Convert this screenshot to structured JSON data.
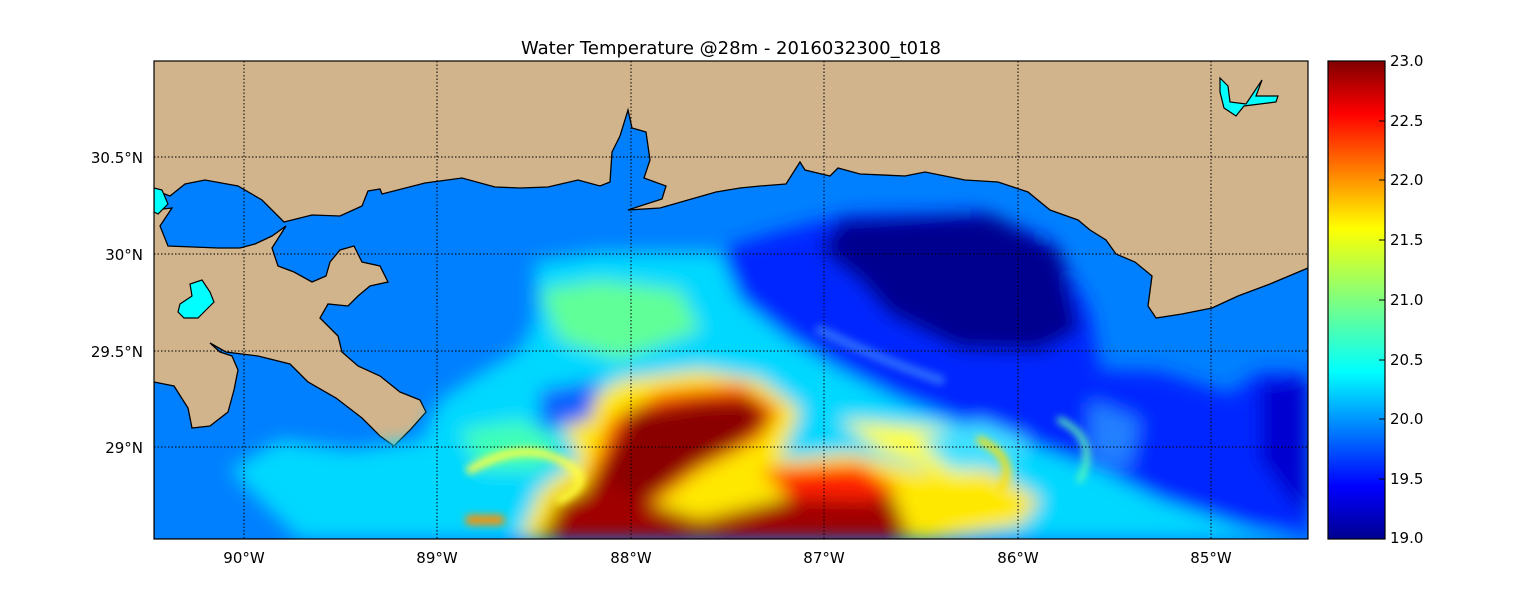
{
  "title": "Water Temperature @28m - 2016032300_t018",
  "chart_data": {
    "type": "heatmap",
    "map_region": "Northern Gulf of Mexico",
    "variable": "Water Temperature",
    "depth": "28m",
    "run": "2016032300_t018",
    "lon_range": [
      -90.47,
      -84.5
    ],
    "lat_range": [
      28.55,
      31.0
    ],
    "lon_ticks": [
      "90°W",
      "89°W",
      "88°W",
      "87°W",
      "86°W",
      "85°W"
    ],
    "lat_ticks": [
      "30.5°N",
      "30°N",
      "29.5°N",
      "29°N"
    ],
    "grid": true,
    "colorbar": {
      "colormap": "jet",
      "min": 19.0,
      "max": 23.0,
      "ticks": [
        "23.0",
        "22.5",
        "22.0",
        "21.5",
        "21.0",
        "20.5",
        "20.0",
        "19.5",
        "19.0"
      ]
    },
    "colors": {
      "land": "#d2b48c",
      "coastal_water": "#0080ff",
      "lake": "#00ffff"
    }
  }
}
